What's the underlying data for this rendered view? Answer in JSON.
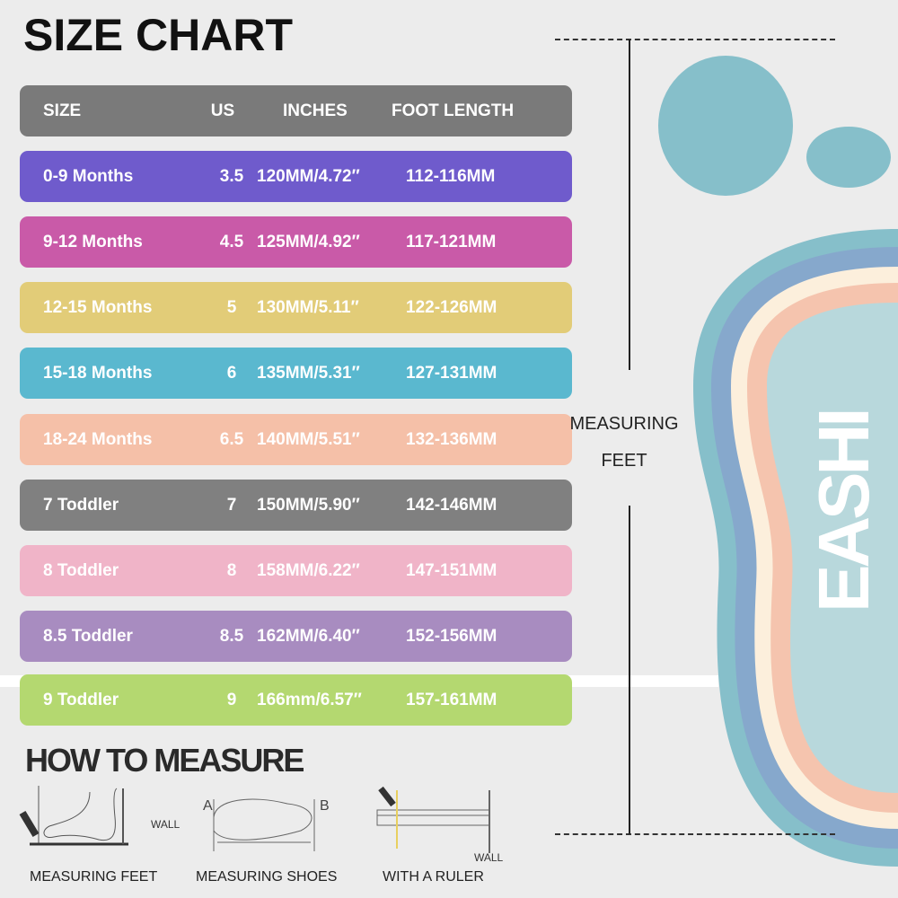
{
  "title": "SIZE CHART",
  "header": {
    "size": "SIZE",
    "us": "US",
    "inches": "INCHES",
    "foot_length": "FOOT LENGTH",
    "color": "#7a7a7a"
  },
  "rows": [
    {
      "size": "0-9 Months",
      "us": "3.5",
      "inches": "120MM/4.72″",
      "foot": "112-116MM",
      "color": "#6f5bcc"
    },
    {
      "size": "9-12 Months",
      "us": "4.5",
      "inches": "125MM/4.92″",
      "foot": "117-121MM",
      "color": "#c95aa8"
    },
    {
      "size": "12-15 Months",
      "us": "5",
      "inches": "130MM/5.11″",
      "foot": "122-126MM",
      "color": "#e2cc78"
    },
    {
      "size": "15-18 Months",
      "us": "6",
      "inches": "135MM/5.31″",
      "foot": "127-131MM",
      "color": "#5ab8cf"
    },
    {
      "size": "18-24 Months",
      "us": "6.5",
      "inches": "140MM/5.51″",
      "foot": "132-136MM",
      "color": "#f5c0a8"
    },
    {
      "size": "7 Toddler",
      "us": "7",
      "inches": "150MM/5.90″",
      "foot": "142-146MM",
      "color": "#808080"
    },
    {
      "size": "8 Toddler",
      "us": "8",
      "inches": "158MM/6.22″",
      "foot": "147-151MM",
      "color": "#f0b4c8"
    },
    {
      "size": "8.5 Toddler",
      "us": "8.5",
      "inches": "162MM/6.40″",
      "foot": "152-156MM",
      "color": "#a88cc0"
    },
    {
      "size": "9 Toddler",
      "us": "9",
      "inches": "166mm/6.57″",
      "foot": "157-161MM",
      "color": "#b4d870"
    }
  ],
  "measuring_feet_label": [
    "MEASURING",
    "FEET"
  ],
  "brand": "EASHI",
  "foot_colors": [
    "#86bfca",
    "#86a8cc",
    "#fcefdc",
    "#f5c4ae",
    "#b8d8dc"
  ],
  "how_to": {
    "title": "HOW TO MEASURE",
    "wall": "WALL",
    "a": "A",
    "b": "B",
    "captions": [
      "MEASURING FEET",
      "MEASURING SHOES",
      "WITH A RULER"
    ]
  }
}
